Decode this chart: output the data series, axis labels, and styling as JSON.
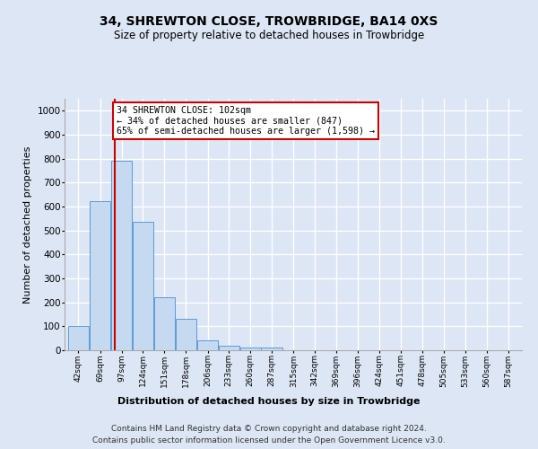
{
  "title": "34, SHREWTON CLOSE, TROWBRIDGE, BA14 0XS",
  "subtitle": "Size of property relative to detached houses in Trowbridge",
  "xlabel": "Distribution of detached houses by size in Trowbridge",
  "ylabel": "Number of detached properties",
  "categories": [
    "42sqm",
    "69sqm",
    "97sqm",
    "124sqm",
    "151sqm",
    "178sqm",
    "206sqm",
    "233sqm",
    "260sqm",
    "287sqm",
    "315sqm",
    "342sqm",
    "369sqm",
    "396sqm",
    "424sqm",
    "451sqm",
    "478sqm",
    "505sqm",
    "533sqm",
    "560sqm",
    "587sqm"
  ],
  "values": [
    103,
    622,
    790,
    538,
    222,
    133,
    42,
    17,
    10,
    13,
    0,
    0,
    0,
    0,
    0,
    0,
    0,
    0,
    0,
    0,
    0
  ],
  "bar_color": "#c5d9f0",
  "bar_edge_color": "#5b9bd5",
  "bin_edges": [
    42,
    69,
    97,
    124,
    151,
    178,
    206,
    233,
    260,
    287,
    315,
    342,
    369,
    396,
    424,
    451,
    478,
    505,
    533,
    560,
    587,
    614
  ],
  "annotation_text": "34 SHREWTON CLOSE: 102sqm\n← 34% of detached houses are smaller (847)\n65% of semi-detached houses are larger (1,598) →",
  "vline_x": 102,
  "vline_color": "#cc0000",
  "ylim": [
    0,
    1050
  ],
  "yticks": [
    0,
    100,
    200,
    300,
    400,
    500,
    600,
    700,
    800,
    900,
    1000
  ],
  "background_color": "#dce6f5",
  "grid_color": "#ffffff",
  "footer_line1": "Contains HM Land Registry data © Crown copyright and database right 2024.",
  "footer_line2": "Contains public sector information licensed under the Open Government Licence v3.0."
}
